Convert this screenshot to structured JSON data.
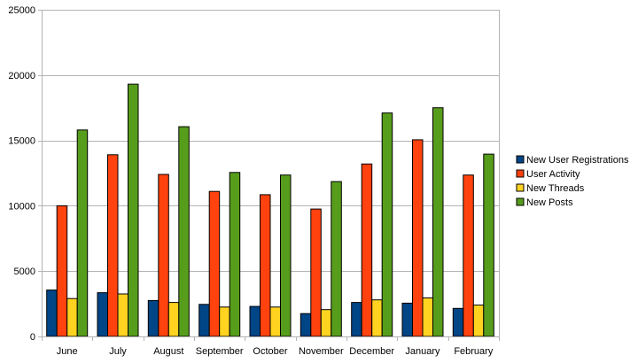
{
  "chart_data": {
    "type": "bar",
    "categories": [
      "June",
      "July",
      "August",
      "September",
      "October",
      "November",
      "December",
      "January",
      "February"
    ],
    "series": [
      {
        "name": "New User Registrations",
        "color": "#004586",
        "values": [
          3550,
          3350,
          2750,
          2450,
          2300,
          1750,
          2600,
          2550,
          2150
        ]
      },
      {
        "name": "User Activity",
        "color": "#ff420e",
        "values": [
          10000,
          13900,
          12400,
          11100,
          10850,
          9750,
          13200,
          15050,
          12350
        ]
      },
      {
        "name": "New Threads",
        "color": "#ffd320",
        "values": [
          2900,
          3250,
          2600,
          2250,
          2250,
          2050,
          2800,
          2950,
          2400
        ]
      },
      {
        "name": "New Posts",
        "color": "#579d1c",
        "values": [
          15800,
          19300,
          16050,
          12550,
          12350,
          11850,
          17100,
          17500,
          13950
        ]
      }
    ],
    "ylim": [
      0,
      25000
    ],
    "yticks": [
      0,
      5000,
      10000,
      15000,
      20000,
      25000
    ],
    "grid": true,
    "legend_position": "right",
    "title": "",
    "xlabel": "",
    "ylabel": ""
  }
}
